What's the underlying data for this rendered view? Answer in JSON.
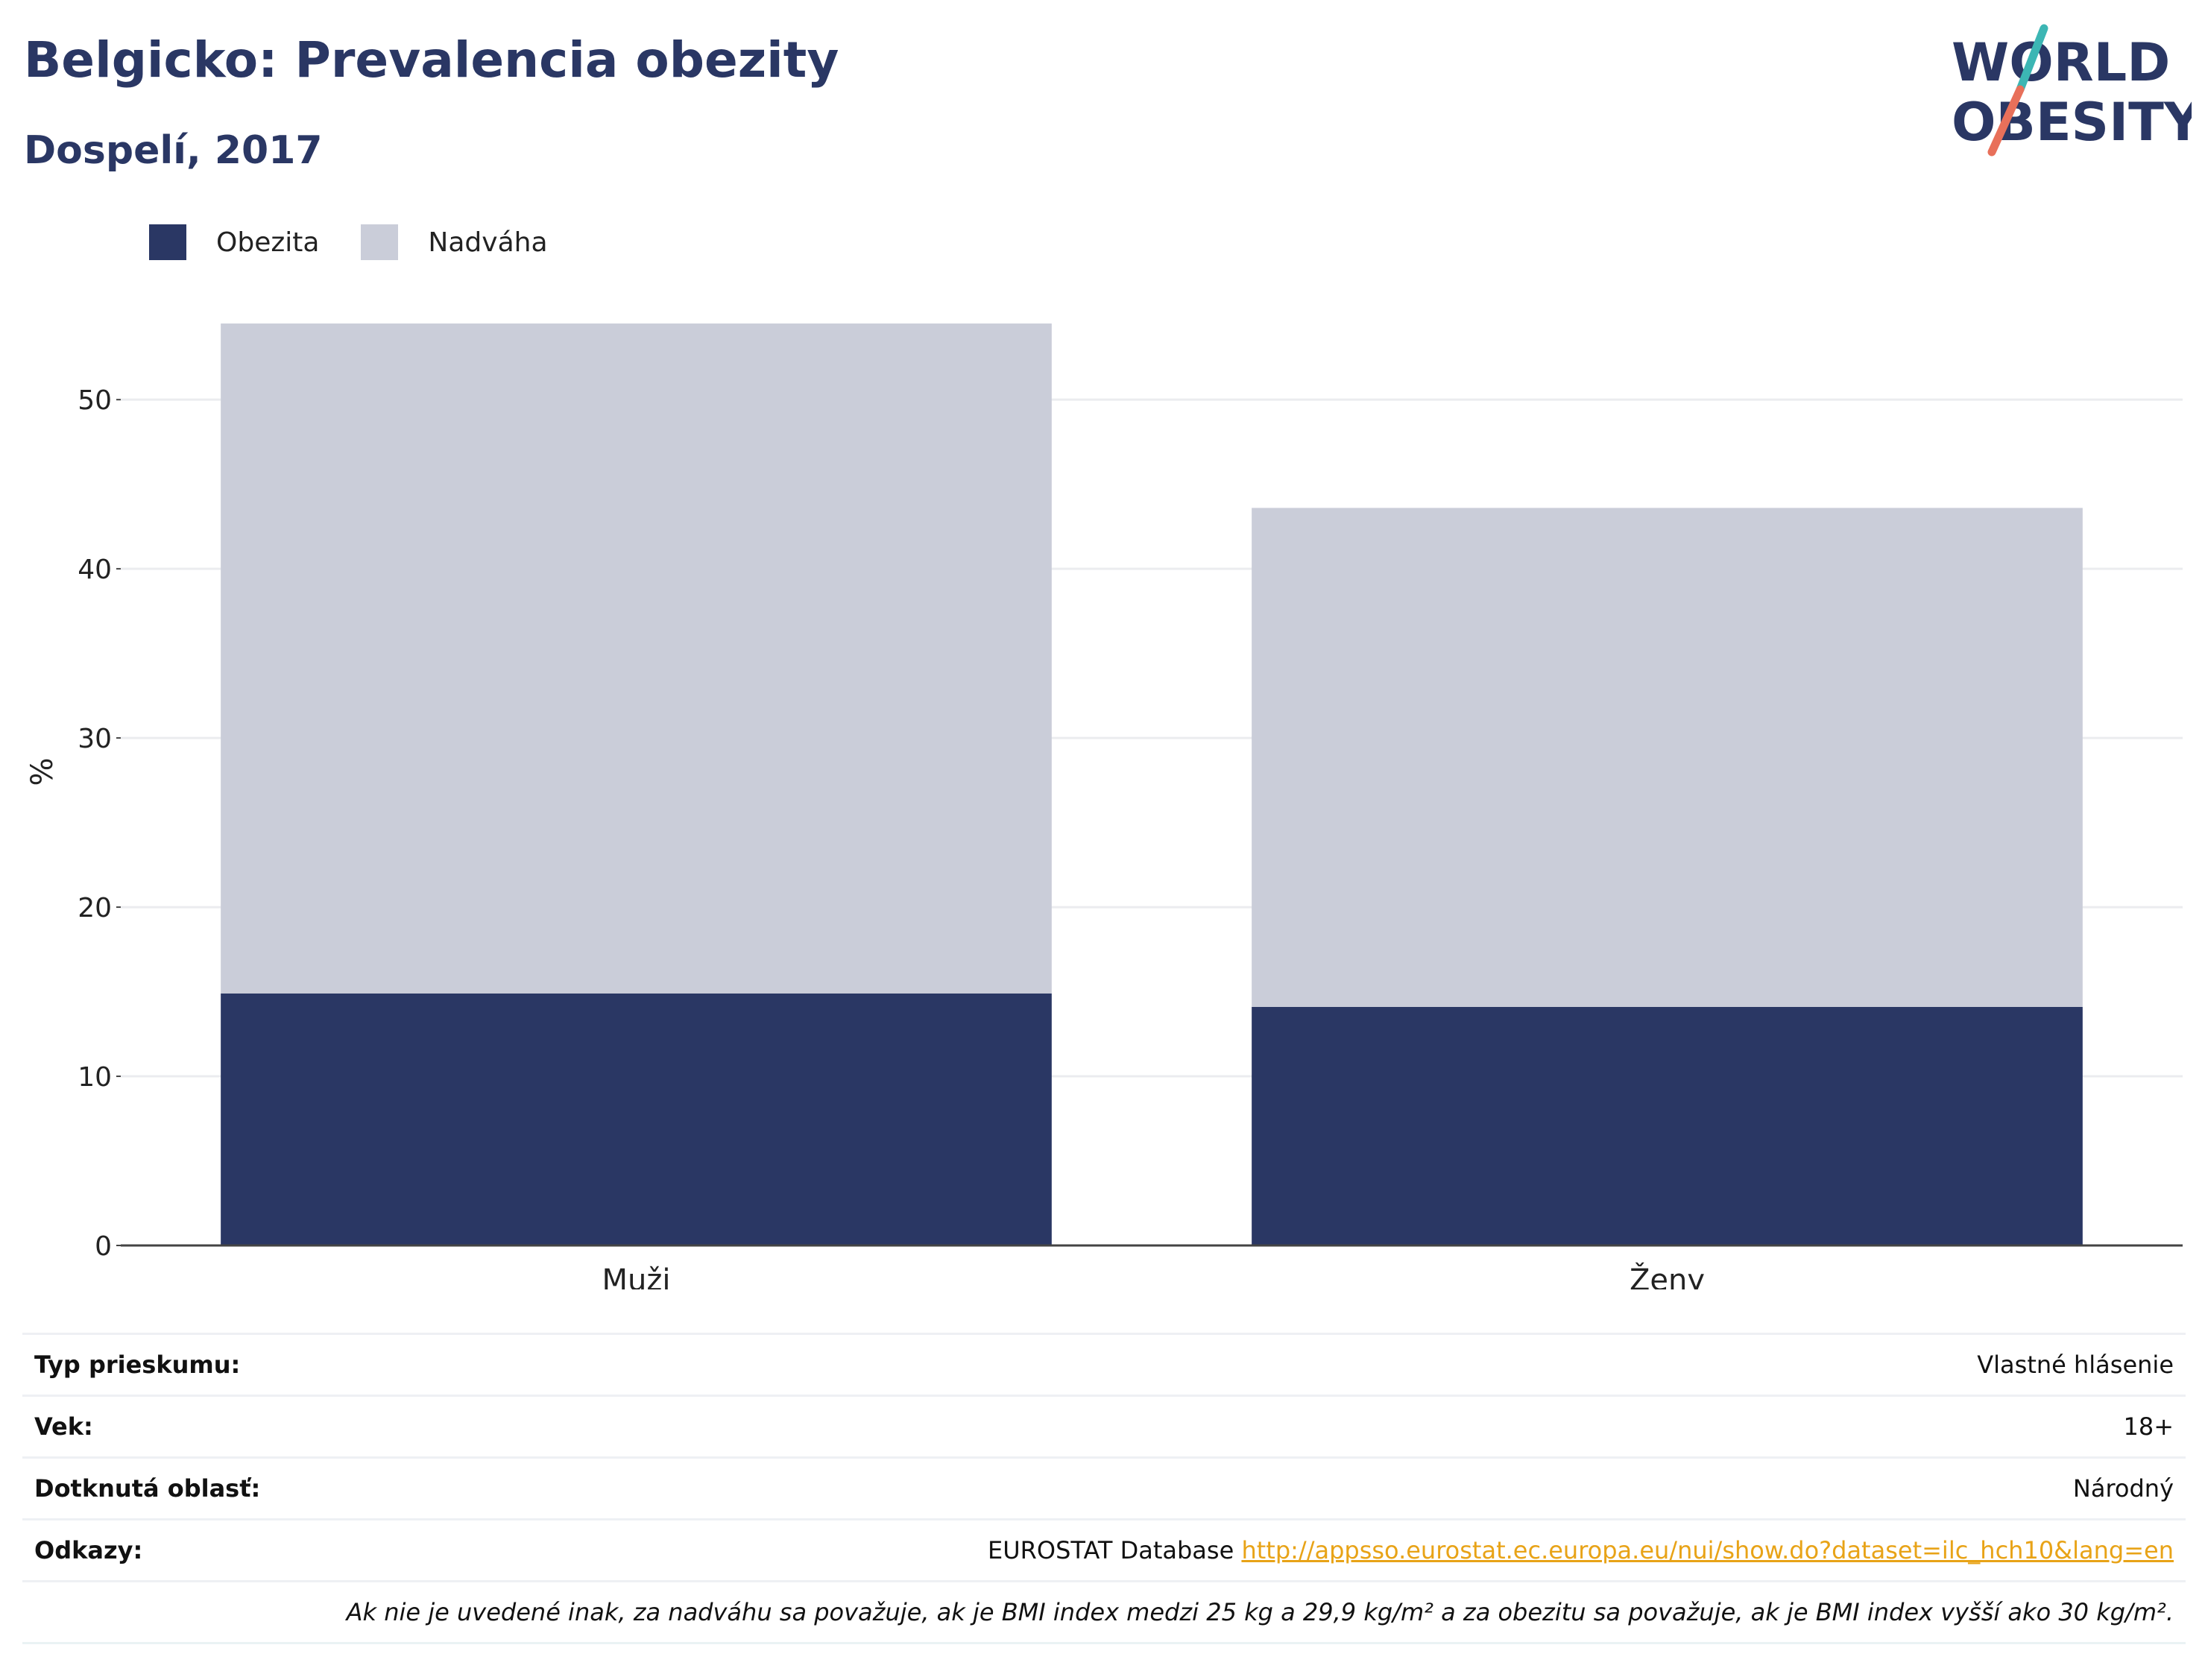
{
  "header": {
    "title": "Belgicko: Prevalencia obezity",
    "subtitle": "Dospelí, 2017"
  },
  "logo": {
    "line1": "WORLD",
    "line2": "OBESITY",
    "colors": {
      "text": "#2a3764",
      "slash_top": "#3cb6b4",
      "slash_bottom": "#e8705a"
    }
  },
  "legend": {
    "items": [
      {
        "label": "Obezita",
        "color": "#2a3764"
      },
      {
        "label": "Nadváha",
        "color": "#cacdd9"
      }
    ]
  },
  "chart_data": {
    "type": "bar",
    "stacked": true,
    "categories": [
      "Muži",
      "Ženy"
    ],
    "series": [
      {
        "name": "Obezita",
        "color": "#2a3764",
        "values": [
          14.9,
          14.1
        ]
      },
      {
        "name": "Nadváha",
        "color": "#cacdd9",
        "values": [
          39.6,
          29.5
        ]
      }
    ],
    "ylabel": "%",
    "xlabel": "",
    "ylim": [
      0,
      56
    ],
    "yticks": [
      0,
      10,
      20,
      30,
      40,
      50
    ],
    "grid": true,
    "legend_position": "top-left"
  },
  "info": {
    "rows": [
      {
        "key": "Typ prieskumu:",
        "value": "Vlastné hlásenie"
      },
      {
        "key": "Vek:",
        "value": "18+"
      },
      {
        "key": "Dotknutá oblasť:",
        "value": "Národný"
      }
    ],
    "references": {
      "key": "Odkazy:",
      "source": "EUROSTAT Database",
      "url": "http://appsso.eurostat.ec.europa.eu/nui/show.do?dataset=ilc_hch10&lang=en"
    },
    "note": "Ak nie je uvedené inak, za nadváhu sa považuje, ak je BMI index medzi 25 kg a 29,9 kg/m² a za obezitu sa považuje, ak je BMI index vyšší ako 30 kg/m²."
  }
}
